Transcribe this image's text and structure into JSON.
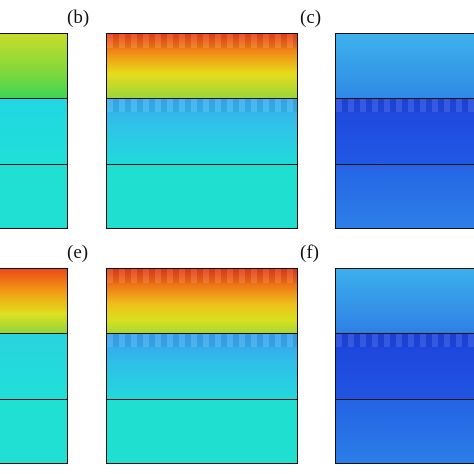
{
  "figure": {
    "panel_labels": {
      "b": "(b)",
      "c": "(c)",
      "e": "(e)",
      "f": "(f)"
    },
    "colors": {
      "red": "#e8401a",
      "orange": "#f39a12",
      "yellow": "#e6e21d",
      "green": "#5ad24a",
      "cyan": "#1fe0d5",
      "aqua": "#2ec8e8",
      "blue_light": "#3ba7ea",
      "blue": "#2f6fe8",
      "blue_dark": "#1e49df"
    }
  }
}
